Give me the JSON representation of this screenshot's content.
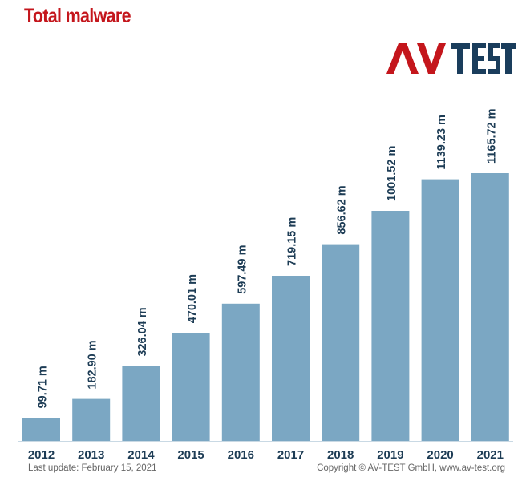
{
  "title": "Total malware",
  "logo": {
    "text": "AV-TEST",
    "accent": "#c4161c",
    "dark": "#1a3d5c"
  },
  "footer": {
    "last_update": "Last update: February 15, 2021",
    "copyright": "Copyright © AV-TEST GmbH, www.av-test.org"
  },
  "colors": {
    "bar": "#7ba7c3",
    "label": "#1d3c55",
    "axis": "#1d3c55",
    "title": "#c4161c"
  },
  "chart_data": {
    "type": "bar",
    "title": "Total malware",
    "categories": [
      "2012",
      "2013",
      "2014",
      "2015",
      "2016",
      "2017",
      "2018",
      "2019",
      "2020",
      "2021"
    ],
    "values": [
      99.71,
      182.9,
      326.04,
      470.01,
      597.49,
      719.15,
      856.62,
      1001.52,
      1139.23,
      1165.72
    ],
    "value_labels": [
      "99.71 m",
      "182.90 m",
      "326.04 m",
      "470.01 m",
      "597.49 m",
      "719.15 m",
      "856.62 m",
      "1001.52 m",
      "1139.23 m",
      "1165.72 m"
    ],
    "unit": "m",
    "xlabel": "",
    "ylabel": "",
    "ylim": [
      0,
      1165.72
    ],
    "grid": false,
    "legend": "none"
  }
}
